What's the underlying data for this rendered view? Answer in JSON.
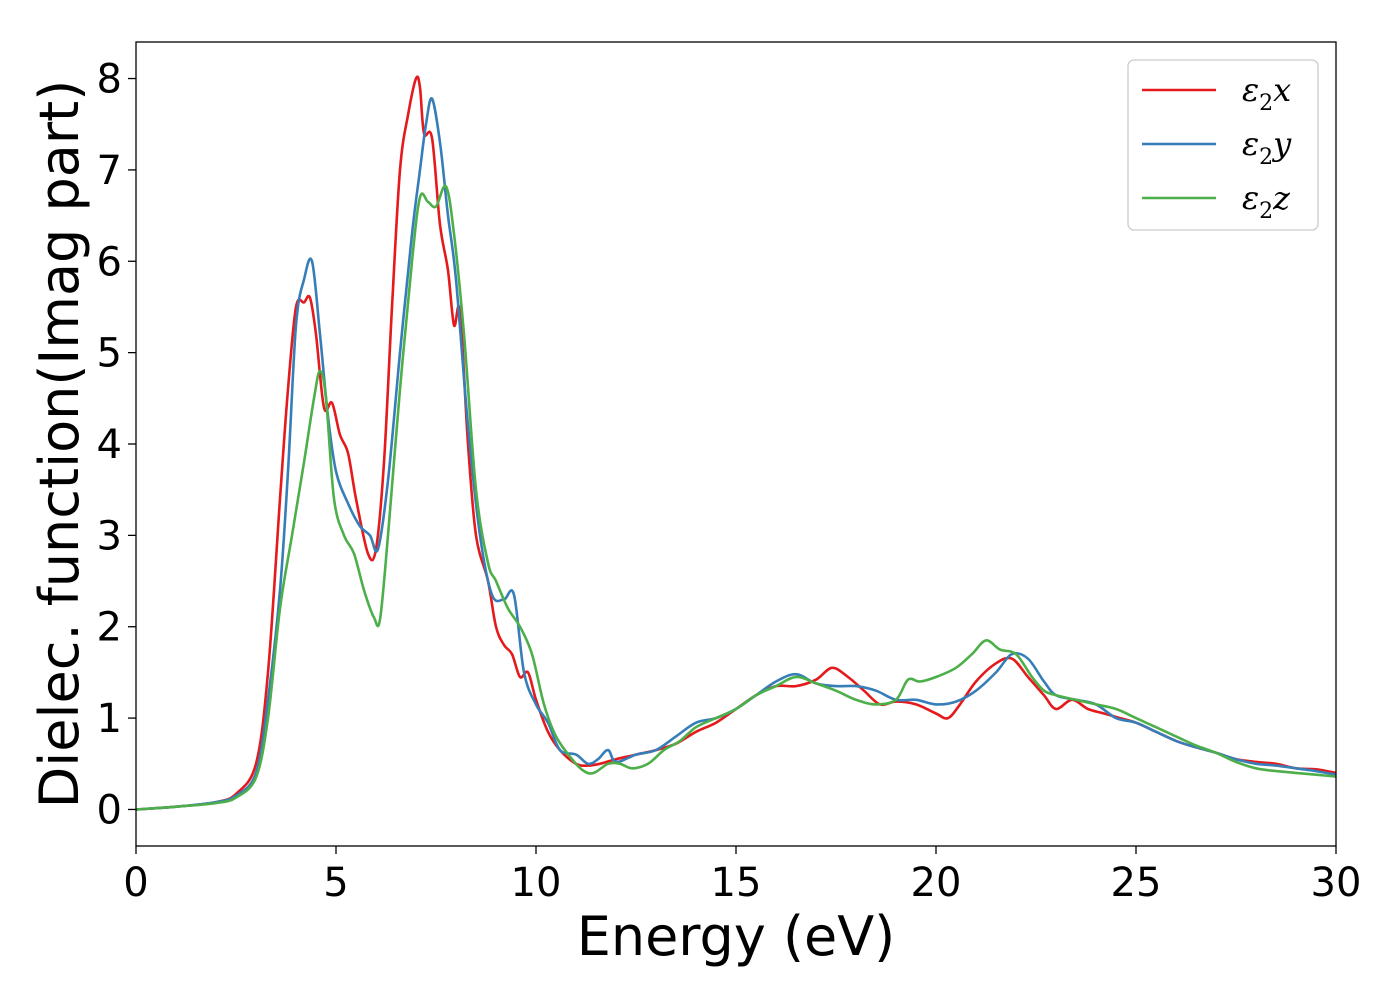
{
  "chart_data": {
    "type": "line",
    "xlabel": "Energy (eV)",
    "ylabel": "Dielec. function(Imag part)",
    "xlim": [
      0,
      30
    ],
    "ylim": [
      -0.4,
      8.4
    ],
    "xticks": [
      0,
      5,
      10,
      15,
      20,
      25,
      30
    ],
    "yticks": [
      0,
      1,
      2,
      3,
      4,
      5,
      6,
      7,
      8
    ],
    "grid": false,
    "legend_position": "top-right",
    "series": [
      {
        "name": "ε2x",
        "legend_symbol": "ε",
        "legend_sub": "2",
        "legend_var": "x",
        "color": "#e41a1c",
        "x": [
          0,
          1,
          2,
          2.5,
          3,
          3.3,
          3.6,
          3.8,
          4.0,
          4.2,
          4.35,
          4.5,
          4.7,
          4.9,
          5.1,
          5.3,
          5.5,
          5.8,
          6.0,
          6.2,
          6.4,
          6.6,
          6.8,
          7.0,
          7.1,
          7.2,
          7.4,
          7.6,
          7.8,
          7.95,
          8.1,
          8.3,
          8.5,
          8.8,
          9.0,
          9.2,
          9.4,
          9.6,
          9.8,
          10.0,
          10.3,
          10.6,
          11.0,
          11.3,
          11.6,
          12.0,
          12.5,
          13.0,
          13.5,
          14.0,
          14.5,
          15.0,
          15.5,
          16.0,
          16.5,
          17.0,
          17.4,
          17.8,
          18.2,
          18.6,
          19.0,
          19.5,
          20.0,
          20.3,
          20.6,
          21.0,
          21.5,
          21.9,
          22.3,
          22.7,
          23.0,
          23.4,
          23.8,
          24.2,
          24.6,
          25.0,
          25.5,
          26.0,
          26.5,
          27.0,
          27.5,
          28.0,
          28.5,
          29.0,
          29.5,
          30.0
        ],
        "y": [
          0,
          0.03,
          0.08,
          0.17,
          0.5,
          1.5,
          3.4,
          4.6,
          5.5,
          5.55,
          5.6,
          5.2,
          4.4,
          4.45,
          4.1,
          3.9,
          3.4,
          2.8,
          2.85,
          3.8,
          5.5,
          7.0,
          7.6,
          8.0,
          7.9,
          7.4,
          7.35,
          6.4,
          5.9,
          5.3,
          5.45,
          4.0,
          3.0,
          2.5,
          2.0,
          1.8,
          1.7,
          1.45,
          1.5,
          1.2,
          0.85,
          0.65,
          0.5,
          0.48,
          0.5,
          0.55,
          0.6,
          0.65,
          0.72,
          0.85,
          0.95,
          1.1,
          1.25,
          1.35,
          1.35,
          1.42,
          1.55,
          1.45,
          1.3,
          1.15,
          1.18,
          1.15,
          1.05,
          1.0,
          1.15,
          1.4,
          1.6,
          1.65,
          1.45,
          1.25,
          1.1,
          1.2,
          1.1,
          1.05,
          1.0,
          0.95,
          0.85,
          0.75,
          0.68,
          0.62,
          0.55,
          0.52,
          0.5,
          0.45,
          0.44,
          0.4
        ]
      },
      {
        "name": "ε2y",
        "legend_symbol": "ε",
        "legend_sub": "2",
        "legend_var": "y",
        "color": "#377eb8",
        "x": [
          0,
          1,
          2,
          2.5,
          3,
          3.3,
          3.6,
          3.8,
          4.0,
          4.2,
          4.4,
          4.6,
          4.8,
          5.0,
          5.3,
          5.6,
          5.85,
          6.05,
          6.3,
          6.6,
          6.9,
          7.1,
          7.25,
          7.4,
          7.6,
          7.8,
          8.0,
          8.3,
          8.6,
          8.9,
          9.2,
          9.45,
          9.7,
          10.0,
          10.3,
          10.6,
          11.0,
          11.3,
          11.55,
          11.8,
          12.0,
          12.5,
          13.0,
          13.5,
          14.0,
          14.5,
          15.0,
          15.5,
          16.0,
          16.5,
          17.0,
          17.5,
          18.0,
          18.5,
          19.0,
          19.5,
          20.0,
          20.5,
          21.0,
          21.5,
          21.9,
          22.3,
          22.7,
          23.0,
          23.5,
          24.0,
          24.5,
          25.0,
          25.5,
          26.0,
          26.5,
          27.0,
          27.5,
          28.0,
          28.5,
          29.0,
          29.5,
          30.0
        ],
        "y": [
          0,
          0.03,
          0.08,
          0.15,
          0.4,
          1.2,
          2.4,
          3.7,
          5.3,
          5.8,
          6.0,
          5.2,
          4.3,
          3.7,
          3.35,
          3.1,
          3.0,
          2.85,
          3.6,
          5.0,
          6.3,
          7.0,
          7.5,
          7.78,
          7.3,
          6.5,
          5.8,
          4.2,
          3.0,
          2.35,
          2.3,
          2.35,
          1.5,
          1.15,
          0.95,
          0.65,
          0.6,
          0.5,
          0.55,
          0.65,
          0.52,
          0.6,
          0.65,
          0.8,
          0.95,
          1.0,
          1.1,
          1.25,
          1.4,
          1.48,
          1.38,
          1.35,
          1.35,
          1.3,
          1.2,
          1.2,
          1.15,
          1.18,
          1.3,
          1.5,
          1.7,
          1.65,
          1.4,
          1.25,
          1.2,
          1.15,
          1.0,
          0.95,
          0.85,
          0.75,
          0.68,
          0.62,
          0.55,
          0.5,
          0.48,
          0.45,
          0.42,
          0.38
        ]
      },
      {
        "name": "ε2z",
        "legend_symbol": "ε",
        "legend_sub": "2",
        "legend_var": "z",
        "color": "#4daf4a",
        "x": [
          0,
          1,
          2,
          2.5,
          3,
          3.3,
          3.6,
          3.9,
          4.2,
          4.45,
          4.6,
          4.75,
          4.95,
          5.2,
          5.45,
          5.7,
          5.95,
          6.1,
          6.3,
          6.6,
          6.9,
          7.1,
          7.3,
          7.5,
          7.75,
          7.95,
          8.2,
          8.5,
          8.8,
          9.0,
          9.3,
          9.6,
          9.9,
          10.2,
          10.5,
          10.9,
          11.2,
          11.45,
          11.8,
          12.1,
          12.4,
          12.8,
          13.2,
          13.6,
          14.0,
          14.5,
          15.0,
          15.5,
          16.0,
          16.5,
          17.0,
          17.5,
          18.0,
          18.5,
          19.0,
          19.3,
          19.6,
          20.0,
          20.5,
          20.9,
          21.25,
          21.6,
          22.0,
          22.4,
          22.7,
          23.0,
          23.5,
          24.0,
          24.5,
          25.0,
          25.5,
          26.0,
          26.5,
          27.0,
          27.5,
          28.0,
          28.5,
          29.0,
          29.5,
          30.0
        ],
        "y": [
          0,
          0.03,
          0.07,
          0.13,
          0.35,
          1.0,
          2.2,
          3.0,
          3.8,
          4.5,
          4.8,
          4.5,
          3.4,
          3.0,
          2.8,
          2.4,
          2.1,
          2.08,
          3.0,
          4.6,
          6.0,
          6.7,
          6.65,
          6.6,
          6.82,
          6.3,
          5.2,
          3.5,
          2.7,
          2.5,
          2.2,
          2.0,
          1.7,
          1.15,
          0.8,
          0.55,
          0.42,
          0.4,
          0.5,
          0.5,
          0.45,
          0.5,
          0.65,
          0.75,
          0.9,
          1.0,
          1.1,
          1.25,
          1.35,
          1.45,
          1.38,
          1.3,
          1.2,
          1.15,
          1.2,
          1.42,
          1.4,
          1.45,
          1.55,
          1.7,
          1.85,
          1.75,
          1.7,
          1.45,
          1.3,
          1.25,
          1.2,
          1.15,
          1.1,
          1.0,
          0.9,
          0.8,
          0.7,
          0.62,
          0.52,
          0.45,
          0.42,
          0.4,
          0.38,
          0.36
        ]
      }
    ]
  }
}
